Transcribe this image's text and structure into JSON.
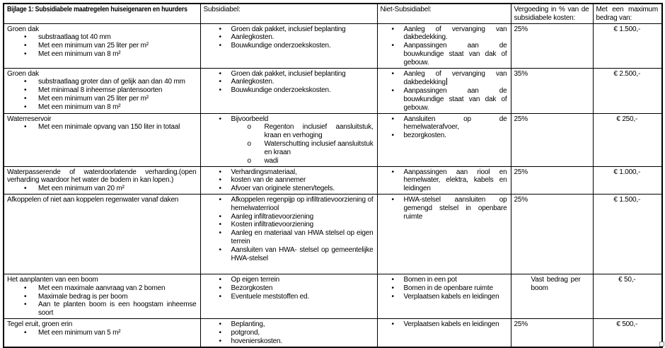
{
  "colors": {
    "border": "#000000",
    "background": "#ffffff",
    "text": "#000000"
  },
  "icons": {
    "disc_bullet": "•",
    "circle_bullet": "o"
  },
  "table": {
    "headers": {
      "measures": "Bijlage 1: Subsidiabele maatregelen huiseigenaren en huurders",
      "subsidiabel": "Subsidiabel:",
      "niet_subsidiabel": "Niet-Subsidiabel:",
      "vergoeding": "Vergoeding in % van de subsidiabele kosten:",
      "maximum": "Met een maximum bedrag van:"
    },
    "rows": [
      {
        "measure": {
          "title": "Groen dak",
          "bullets": [
            "substraatlaag tot 40 mm",
            "Met een minimum van 25 liter per m²",
            "Met een minimum van 8 m²"
          ]
        },
        "subsidiabel": [
          {
            "text": "Groen dak pakket, inclusief beplanting"
          },
          {
            "text": "Aanlegkosten."
          },
          {
            "text": "Bouwkundige onderzoekskosten."
          }
        ],
        "niet_subsidiabel": [
          {
            "text": "Aanleg of vervanging van dakbedekking."
          },
          {
            "text": "Aanpassingen aan de bouwkundige staat van dak of gebouw."
          }
        ],
        "vergoeding": "25%",
        "maximum": "€ 1.500,-"
      },
      {
        "measure": {
          "title": "Groen dak",
          "bullets": [
            "substraatlaag groter dan  of gelijk aan dan 40 mm",
            "Met minimaal 8 inheemse plantensoorten",
            "Met een minimum van 25 liter per m²",
            "Met een minimum van 8 m²"
          ]
        },
        "subsidiabel": [
          {
            "text": "Groen dak pakket, inclusief beplanting"
          },
          {
            "text": "Aanlegkosten."
          },
          {
            "text": "Bouwkundige onderzoekskosten."
          }
        ],
        "niet_subsidiabel": [
          {
            "text": "Aanleg of vervanging van dakbedekking",
            "caret": true
          },
          {
            "text": "Aanpassingen aan de bouwkundige staat van dak of gebouw."
          }
        ],
        "vergoeding": "35%",
        "maximum": "€ 2.500,-"
      },
      {
        "measure": {
          "title": "Waterreservoir",
          "bullets": [
            "Met een minimale opvang van 150 liter in totaal"
          ]
        },
        "subsidiabel": [
          {
            "text": "Bijvoorbeeld",
            "sub": [
              "Regenton inclusief aansluitstuk, kraan en verhoging",
              "Waterschutting inclusief aansluitstuk en kraan",
              "wadi"
            ]
          }
        ],
        "niet_subsidiabel": [
          {
            "text": "Aansluiten op de hemelwaterafvoer,"
          },
          {
            "text": "bezorgkosten."
          }
        ],
        "vergoeding": "25%",
        "maximum": "€ 250,-"
      },
      {
        "measure": {
          "title": "Waterpasserende of waterdoorlatende verharding.(open verharding waardoor het water de bodem in kan lopen.)",
          "bullets": [
            "Met een minimum van 20 m²"
          ]
        },
        "subsidiabel": [
          {
            "text": "Verhardingsmateriaal,"
          },
          {
            "text": "kosten van de aannemer"
          },
          {
            "text": "Afvoer van originele stenen/tegels."
          }
        ],
        "niet_subsidiabel": [
          {
            "text": "Aanpassingen aan riool en hemelwater, elektra, kabels en leidingen"
          }
        ],
        "vergoeding": "25%",
        "maximum": "€ 1.000,-"
      },
      {
        "measure": {
          "title": "Afkoppelen of niet aan koppelen regenwater vanaf daken",
          "bullets": []
        },
        "subsidiabel": [
          {
            "text": "Afkoppelen regenpijp op infiltratievoorziening of hemelwaterriool"
          },
          {
            "text": "Aanleg infiltratievoorziening"
          },
          {
            "text": "Kosten infiltratievoorziening"
          },
          {
            "text": "Aanleg en materiaal van HWA stelsel op eigen terrein"
          },
          {
            "text": "Aansluiten van HWA- stelsel op gemeentelijke HWA-stelsel"
          }
        ],
        "niet_subsidiabel": [
          {
            "text": "HWA-stelsel aansluiten op gemengd stelsel in openbare ruimte"
          }
        ],
        "vergoeding": "25%",
        "maximum": "€ 1.500,-"
      },
      {
        "measure": {
          "title": "Het aanplanten van een boom",
          "bullets": [
            "Met een maximale aanvraag van 2 bomen",
            "Maximale bedrag is per boom",
            "Aan te planten boom  is een hoogstam inheemse soort"
          ]
        },
        "subsidiabel": [
          {
            "text": "Op eigen terrein"
          },
          {
            "text": "Bezorgkosten"
          },
          {
            "text": "Eventuele meststoffen ed."
          }
        ],
        "niet_subsidiabel": [
          {
            "text": "Bomen in een pot"
          },
          {
            "text": "Bomen in de openbare ruimte"
          },
          {
            "text": "Verplaatsen kabels en leidingen"
          }
        ],
        "vergoeding": "Vast bedrag per boom",
        "maximum": "€ 50,-"
      },
      {
        "measure": {
          "title": "Tegel eruit, groen erin",
          "bullets": [
            "Met een minimum van 5 m²"
          ]
        },
        "subsidiabel": [
          {
            "text": "Beplanting,"
          },
          {
            "text": "potgrond,"
          },
          {
            "text": "hovenierskosten."
          }
        ],
        "niet_subsidiabel": [
          {
            "text": "Verplaatsen kabels en leidingen"
          }
        ],
        "vergoeding": "25%",
        "maximum": "€ 500,-"
      }
    ]
  }
}
